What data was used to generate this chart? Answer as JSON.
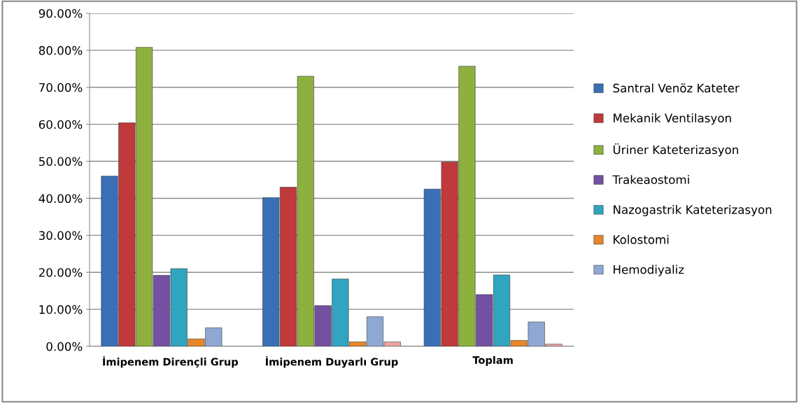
{
  "chart_data": {
    "type": "bar",
    "categories": [
      "İmipenem Dirençli Grup",
      "İmipenem Duyarlı Grup",
      "Toplam"
    ],
    "series": [
      {
        "name": "Santral Venöz Kateter",
        "color": "#3a6fb8",
        "values": [
          46.0,
          40.2,
          42.5
        ]
      },
      {
        "name": "Mekanik Ventilasyon",
        "color": "#c0393b",
        "values": [
          60.4,
          43.0,
          49.8
        ]
      },
      {
        "name": "Üriner Kateterizasyon",
        "color": "#8db03f",
        "values": [
          80.8,
          73.0,
          75.7
        ]
      },
      {
        "name": "Trakeaostomi",
        "color": "#7351a0",
        "values": [
          19.2,
          11.0,
          14.0
        ]
      },
      {
        "name": "Nazogastrik Kateterizasyon",
        "color": "#31a4bf",
        "values": [
          21.0,
          18.2,
          19.3
        ]
      },
      {
        "name": "Kolostomi",
        "color": "#e6862a",
        "values": [
          2.0,
          1.2,
          1.6
        ]
      },
      {
        "name": "Hemodiyaliz",
        "color": "#8fa8d3",
        "values": [
          5.0,
          8.0,
          6.6
        ]
      },
      {
        "color": "#e9a3a3",
        "values": [
          null,
          1.2,
          0.6
        ]
      }
    ],
    "ylim": [
      0,
      90
    ],
    "yticks": [
      {
        "value": 0,
        "label": "0.00%"
      },
      {
        "value": 10,
        "label": "10.00%"
      },
      {
        "value": 20,
        "label": "20.00%"
      },
      {
        "value": 30,
        "label": "30.00%"
      },
      {
        "value": 40,
        "label": "40.00%"
      },
      {
        "value": 50,
        "label": "50.00%"
      },
      {
        "value": 60,
        "label": "60.00%"
      },
      {
        "value": 70,
        "label": "70.00%"
      },
      {
        "value": 80,
        "label": "80.00%"
      },
      {
        "value": 90,
        "label": "90.00%"
      }
    ],
    "grid": "y",
    "legend": "right"
  }
}
